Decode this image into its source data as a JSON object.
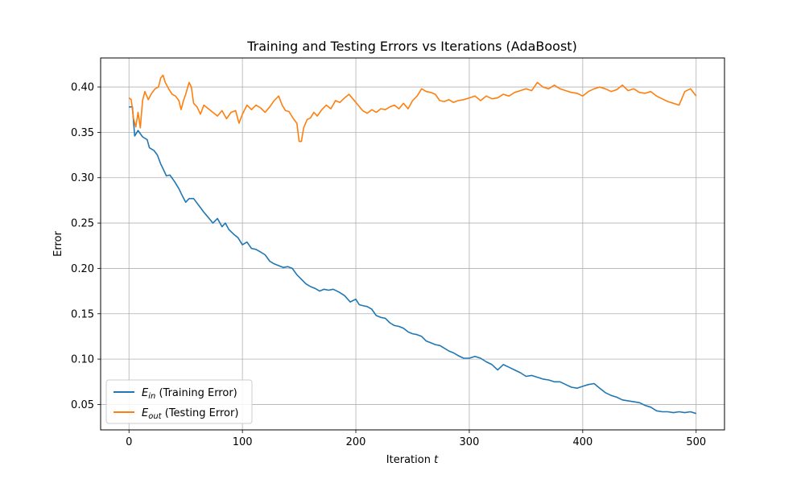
{
  "chart_data": {
    "type": "line",
    "title": "Training and Testing Errors vs Iterations (AdaBoost)",
    "xlabel": "Iteration",
    "xlabel_var": "t",
    "ylabel": "Error",
    "xlim": [
      -25,
      525
    ],
    "ylim": [
      0.022,
      0.432
    ],
    "xticks": [
      0,
      100,
      200,
      300,
      400,
      500
    ],
    "yticks": [
      0.05,
      0.1,
      0.15,
      0.2,
      0.25,
      0.3,
      0.35,
      0.4
    ],
    "ytick_labels": [
      "0.05",
      "0.10",
      "0.15",
      "0.20",
      "0.25",
      "0.30",
      "0.35",
      "0.40"
    ],
    "grid": true,
    "legend_position": "lower-left",
    "series": [
      {
        "name": "E_in (Training Error)",
        "legend_sym": "E",
        "legend_sub": "in",
        "legend_rest": " (Training Error)",
        "color": "#1f77b4",
        "points": [
          [
            0,
            0.378
          ],
          [
            3,
            0.378
          ],
          [
            5,
            0.346
          ],
          [
            8,
            0.352
          ],
          [
            12,
            0.345
          ],
          [
            16,
            0.342
          ],
          [
            18,
            0.333
          ],
          [
            22,
            0.33
          ],
          [
            25,
            0.325
          ],
          [
            28,
            0.315
          ],
          [
            30,
            0.31
          ],
          [
            33,
            0.302
          ],
          [
            36,
            0.303
          ],
          [
            40,
            0.296
          ],
          [
            44,
            0.288
          ],
          [
            47,
            0.28
          ],
          [
            50,
            0.273
          ],
          [
            53,
            0.277
          ],
          [
            57,
            0.277
          ],
          [
            60,
            0.272
          ],
          [
            63,
            0.267
          ],
          [
            66,
            0.262
          ],
          [
            70,
            0.256
          ],
          [
            74,
            0.25
          ],
          [
            78,
            0.255
          ],
          [
            82,
            0.246
          ],
          [
            85,
            0.25
          ],
          [
            88,
            0.243
          ],
          [
            92,
            0.238
          ],
          [
            96,
            0.234
          ],
          [
            100,
            0.226
          ],
          [
            104,
            0.229
          ],
          [
            108,
            0.222
          ],
          [
            112,
            0.221
          ],
          [
            116,
            0.218
          ],
          [
            120,
            0.215
          ],
          [
            124,
            0.208
          ],
          [
            128,
            0.205
          ],
          [
            132,
            0.203
          ],
          [
            136,
            0.201
          ],
          [
            140,
            0.202
          ],
          [
            144,
            0.2
          ],
          [
            148,
            0.193
          ],
          [
            152,
            0.188
          ],
          [
            156,
            0.183
          ],
          [
            160,
            0.18
          ],
          [
            164,
            0.178
          ],
          [
            168,
            0.175
          ],
          [
            172,
            0.177
          ],
          [
            176,
            0.176
          ],
          [
            180,
            0.177
          ],
          [
            185,
            0.174
          ],
          [
            190,
            0.17
          ],
          [
            195,
            0.163
          ],
          [
            200,
            0.166
          ],
          [
            203,
            0.16
          ],
          [
            206,
            0.159
          ],
          [
            210,
            0.158
          ],
          [
            214,
            0.155
          ],
          [
            218,
            0.148
          ],
          [
            222,
            0.146
          ],
          [
            226,
            0.145
          ],
          [
            230,
            0.14
          ],
          [
            234,
            0.137
          ],
          [
            238,
            0.136
          ],
          [
            242,
            0.134
          ],
          [
            246,
            0.13
          ],
          [
            250,
            0.128
          ],
          [
            254,
            0.127
          ],
          [
            258,
            0.125
          ],
          [
            262,
            0.12
          ],
          [
            266,
            0.118
          ],
          [
            270,
            0.116
          ],
          [
            274,
            0.115
          ],
          [
            278,
            0.112
          ],
          [
            282,
            0.109
          ],
          [
            286,
            0.107
          ],
          [
            290,
            0.104
          ],
          [
            295,
            0.101
          ],
          [
            300,
            0.101
          ],
          [
            305,
            0.103
          ],
          [
            310,
            0.101
          ],
          [
            315,
            0.097
          ],
          [
            320,
            0.094
          ],
          [
            325,
            0.088
          ],
          [
            330,
            0.094
          ],
          [
            335,
            0.091
          ],
          [
            340,
            0.088
          ],
          [
            345,
            0.085
          ],
          [
            350,
            0.081
          ],
          [
            355,
            0.082
          ],
          [
            360,
            0.08
          ],
          [
            365,
            0.078
          ],
          [
            370,
            0.077
          ],
          [
            375,
            0.075
          ],
          [
            380,
            0.075
          ],
          [
            385,
            0.072
          ],
          [
            390,
            0.069
          ],
          [
            395,
            0.068
          ],
          [
            400,
            0.07
          ],
          [
            405,
            0.072
          ],
          [
            410,
            0.073
          ],
          [
            415,
            0.068
          ],
          [
            420,
            0.063
          ],
          [
            425,
            0.06
          ],
          [
            430,
            0.058
          ],
          [
            435,
            0.055
          ],
          [
            440,
            0.054
          ],
          [
            445,
            0.053
          ],
          [
            450,
            0.052
          ],
          [
            455,
            0.049
          ],
          [
            460,
            0.047
          ],
          [
            465,
            0.043
          ],
          [
            470,
            0.042
          ],
          [
            475,
            0.042
          ],
          [
            480,
            0.041
          ],
          [
            485,
            0.042
          ],
          [
            490,
            0.041
          ],
          [
            495,
            0.042
          ],
          [
            500,
            0.04
          ]
        ]
      },
      {
        "name": "E_out (Testing Error)",
        "legend_sym": "E",
        "legend_sub": "out",
        "legend_rest": " (Testing Error)",
        "color": "#ff7f0e",
        "points": [
          [
            0,
            0.388
          ],
          [
            2,
            0.386
          ],
          [
            4,
            0.365
          ],
          [
            6,
            0.356
          ],
          [
            8,
            0.372
          ],
          [
            10,
            0.355
          ],
          [
            12,
            0.385
          ],
          [
            14,
            0.395
          ],
          [
            17,
            0.386
          ],
          [
            20,
            0.393
          ],
          [
            23,
            0.398
          ],
          [
            26,
            0.4
          ],
          [
            28,
            0.41
          ],
          [
            30,
            0.413
          ],
          [
            32,
            0.405
          ],
          [
            35,
            0.398
          ],
          [
            38,
            0.392
          ],
          [
            41,
            0.39
          ],
          [
            44,
            0.385
          ],
          [
            46,
            0.375
          ],
          [
            48,
            0.385
          ],
          [
            50,
            0.392
          ],
          [
            53,
            0.405
          ],
          [
            55,
            0.4
          ],
          [
            57,
            0.382
          ],
          [
            60,
            0.378
          ],
          [
            63,
            0.37
          ],
          [
            66,
            0.38
          ],
          [
            70,
            0.376
          ],
          [
            74,
            0.372
          ],
          [
            78,
            0.368
          ],
          [
            82,
            0.374
          ],
          [
            86,
            0.365
          ],
          [
            90,
            0.372
          ],
          [
            94,
            0.374
          ],
          [
            97,
            0.36
          ],
          [
            100,
            0.37
          ],
          [
            104,
            0.38
          ],
          [
            108,
            0.375
          ],
          [
            112,
            0.38
          ],
          [
            116,
            0.377
          ],
          [
            120,
            0.372
          ],
          [
            124,
            0.378
          ],
          [
            128,
            0.385
          ],
          [
            132,
            0.39
          ],
          [
            135,
            0.38
          ],
          [
            138,
            0.374
          ],
          [
            141,
            0.373
          ],
          [
            145,
            0.365
          ],
          [
            148,
            0.36
          ],
          [
            150,
            0.34
          ],
          [
            152,
            0.34
          ],
          [
            154,
            0.355
          ],
          [
            157,
            0.364
          ],
          [
            160,
            0.366
          ],
          [
            163,
            0.372
          ],
          [
            166,
            0.368
          ],
          [
            170,
            0.375
          ],
          [
            174,
            0.38
          ],
          [
            178,
            0.376
          ],
          [
            182,
            0.385
          ],
          [
            186,
            0.383
          ],
          [
            190,
            0.388
          ],
          [
            194,
            0.392
          ],
          [
            198,
            0.386
          ],
          [
            202,
            0.38
          ],
          [
            206,
            0.374
          ],
          [
            210,
            0.371
          ],
          [
            214,
            0.375
          ],
          [
            218,
            0.372
          ],
          [
            222,
            0.376
          ],
          [
            226,
            0.375
          ],
          [
            230,
            0.378
          ],
          [
            234,
            0.38
          ],
          [
            238,
            0.376
          ],
          [
            242,
            0.382
          ],
          [
            246,
            0.376
          ],
          [
            250,
            0.385
          ],
          [
            254,
            0.39
          ],
          [
            258,
            0.398
          ],
          [
            262,
            0.395
          ],
          [
            266,
            0.394
          ],
          [
            270,
            0.392
          ],
          [
            274,
            0.385
          ],
          [
            278,
            0.384
          ],
          [
            282,
            0.386
          ],
          [
            286,
            0.383
          ],
          [
            290,
            0.385
          ],
          [
            295,
            0.386
          ],
          [
            300,
            0.388
          ],
          [
            305,
            0.39
          ],
          [
            310,
            0.385
          ],
          [
            315,
            0.39
          ],
          [
            320,
            0.387
          ],
          [
            325,
            0.388
          ],
          [
            330,
            0.392
          ],
          [
            335,
            0.39
          ],
          [
            340,
            0.394
          ],
          [
            345,
            0.396
          ],
          [
            350,
            0.398
          ],
          [
            355,
            0.396
          ],
          [
            360,
            0.405
          ],
          [
            365,
            0.4
          ],
          [
            370,
            0.398
          ],
          [
            375,
            0.402
          ],
          [
            380,
            0.398
          ],
          [
            385,
            0.396
          ],
          [
            390,
            0.394
          ],
          [
            395,
            0.393
          ],
          [
            400,
            0.39
          ],
          [
            405,
            0.395
          ],
          [
            410,
            0.398
          ],
          [
            415,
            0.4
          ],
          [
            420,
            0.398
          ],
          [
            425,
            0.395
          ],
          [
            430,
            0.397
          ],
          [
            435,
            0.402
          ],
          [
            440,
            0.396
          ],
          [
            445,
            0.398
          ],
          [
            450,
            0.394
          ],
          [
            455,
            0.393
          ],
          [
            460,
            0.395
          ],
          [
            465,
            0.39
          ],
          [
            470,
            0.387
          ],
          [
            475,
            0.384
          ],
          [
            480,
            0.382
          ],
          [
            485,
            0.38
          ],
          [
            490,
            0.395
          ],
          [
            495,
            0.398
          ],
          [
            500,
            0.39
          ]
        ]
      }
    ]
  }
}
